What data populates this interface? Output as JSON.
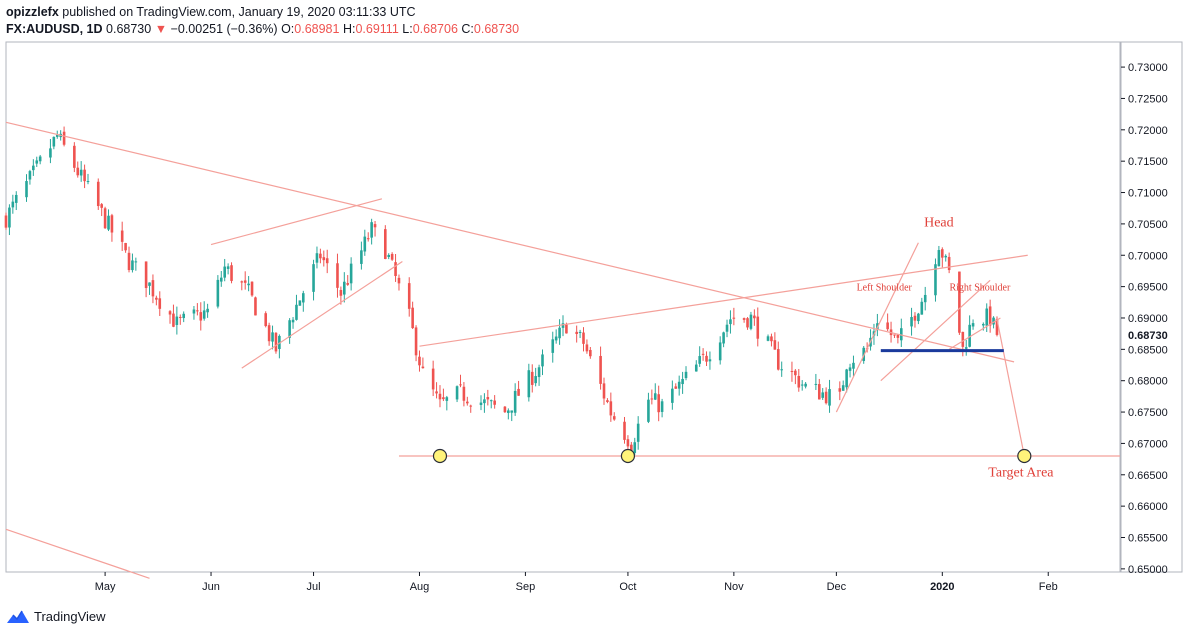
{
  "header": {
    "author": "opizzlefx",
    "published": " published on TradingView.com, January 19, 2020 03:11:33 UTC",
    "symbol": "FX:AUDUSD, 1D",
    "last": "0.68730",
    "change_arrow": "▼",
    "change": "−0.00251 (−0.36%)",
    "o_label": "O:",
    "o_val": "0.68981",
    "h_label": "H:",
    "h_val": "0.69111",
    "l_label": "L:",
    "l_val": "0.68706",
    "c_label": "C:",
    "c_val": "0.68730"
  },
  "footer": {
    "brand": "TradingView",
    "logo_icon": "tradingview-logo-icon"
  },
  "colors": {
    "up": "#26a69a",
    "down": "#ef5350",
    "drawing": "#f4a09a",
    "neckline": "#1a3a9c",
    "marker_fill": "#fff37a",
    "price_label_bg": "#ffffff"
  },
  "chart_data": {
    "type": "candlestick",
    "symbol": "FX:AUDUSD",
    "interval": "1D",
    "ylim": [
      0.6495,
      0.734
    ],
    "y_ticks": [
      "0.73000",
      "0.72500",
      "0.72000",
      "0.71500",
      "0.71000",
      "0.70500",
      "0.70000",
      "0.69500",
      "0.69000",
      "0.68500",
      "0.68000",
      "0.67500",
      "0.67000",
      "0.66500",
      "0.66000",
      "0.65500",
      "0.65000"
    ],
    "x_ticks": [
      "May",
      "Jun",
      "Jul",
      "Aug",
      "Sep",
      "Oct",
      "Nov",
      "Dec",
      "2020",
      "Feb"
    ],
    "last_price_label": "0.68730",
    "x_range": [
      "2019-04-02",
      "2020-02-22"
    ],
    "anchors": [
      [
        "2019-04-02",
        0.706
      ],
      [
        "2019-04-17",
        0.719
      ],
      [
        "2019-05-08",
        0.699
      ],
      [
        "2019-05-13",
        0.696
      ],
      [
        "2019-05-22",
        0.689
      ],
      [
        "2019-05-31",
        0.691
      ],
      [
        "2019-06-05",
        0.698
      ],
      [
        "2019-06-12",
        0.694
      ],
      [
        "2019-06-20",
        0.685
      ],
      [
        "2019-07-03",
        0.7
      ],
      [
        "2019-07-09",
        0.694
      ],
      [
        "2019-07-18",
        0.704
      ],
      [
        "2019-07-22",
        0.701
      ],
      [
        "2019-07-29",
        0.69
      ],
      [
        "2019-08-02",
        0.681
      ],
      [
        "2019-08-07",
        0.676
      ],
      [
        "2019-08-13",
        0.678
      ],
      [
        "2019-08-26",
        0.675
      ],
      [
        "2019-09-06",
        0.683
      ],
      [
        "2019-09-13",
        0.689
      ],
      [
        "2019-09-18",
        0.686
      ],
      [
        "2019-09-26",
        0.675
      ],
      [
        "2019-10-02",
        0.67
      ],
      [
        "2019-10-07",
        0.677
      ],
      [
        "2019-10-11",
        0.676
      ],
      [
        "2019-10-24",
        0.684
      ],
      [
        "2019-10-31",
        0.69
      ],
      [
        "2019-11-06",
        0.69
      ],
      [
        "2019-11-14",
        0.683
      ],
      [
        "2019-11-22",
        0.679
      ],
      [
        "2019-12-02",
        0.677
      ],
      [
        "2019-12-04",
        0.683
      ],
      [
        "2019-12-10",
        0.685
      ],
      [
        "2019-12-13",
        0.69
      ],
      [
        "2019-12-19",
        0.686
      ],
      [
        "2019-12-27",
        0.694
      ],
      [
        "2019-12-31",
        0.702
      ],
      [
        "2020-01-03",
        0.697
      ],
      [
        "2020-01-07",
        0.685
      ],
      [
        "2020-01-10",
        0.69
      ],
      [
        "2020-01-15",
        0.69
      ],
      [
        "2020-01-17",
        0.6873
      ]
    ],
    "drawings": {
      "lines": [
        {
          "from": [
            "2019-04-02",
            0.7212
          ],
          "to": [
            "2020-01-22",
            0.683
          ]
        },
        {
          "from": [
            "2019-06-01",
            0.7017
          ],
          "to": [
            "2019-07-21",
            0.709
          ]
        },
        {
          "from": [
            "2019-06-10",
            0.682
          ],
          "to": [
            "2019-07-27",
            0.699
          ]
        },
        {
          "from": [
            "2019-08-01",
            0.6855
          ],
          "to": [
            "2020-01-26",
            0.7
          ]
        },
        {
          "from": [
            "2019-07-26",
            0.668
          ],
          "to": [
            "2020-02-22",
            0.668
          ]
        },
        {
          "from": [
            "2019-12-01",
            0.675
          ],
          "to": [
            "2019-12-25",
            0.702
          ]
        },
        {
          "from": [
            "2019-12-14",
            0.68
          ],
          "to": [
            "2020-01-15",
            0.696
          ]
        },
        {
          "from": [
            "2020-01-03",
            0.685
          ],
          "to": [
            "2020-01-18",
            0.69
          ]
        },
        {
          "from": [
            "2020-01-17",
            0.6898
          ],
          "to": [
            "2020-01-25",
            0.668
          ]
        },
        {
          "from": [
            "2019-04-02",
            0.6563
          ],
          "to": [
            "2019-05-14",
            0.6485
          ]
        }
      ],
      "neckline": {
        "from": [
          "2019-12-14",
          0.6848
        ],
        "to": [
          "2020-01-19",
          0.6848
        ]
      },
      "markers": [
        [
          "2019-08-07",
          0.668
        ],
        [
          "2019-10-01",
          0.668
        ],
        [
          "2020-01-25",
          0.668
        ]
      ],
      "labels": [
        {
          "text": "Head",
          "at": [
            "2019-12-31",
            0.7046
          ],
          "size": 14
        },
        {
          "text": "Left Shoulder",
          "at": [
            "2019-12-15",
            0.6944
          ],
          "size": 10
        },
        {
          "text": "Right Shoulder",
          "at": [
            "2020-01-12",
            0.6944
          ],
          "size": 10
        },
        {
          "text": "Target Area",
          "at": [
            "2020-01-24",
            0.6647
          ],
          "size": 14
        }
      ]
    }
  }
}
